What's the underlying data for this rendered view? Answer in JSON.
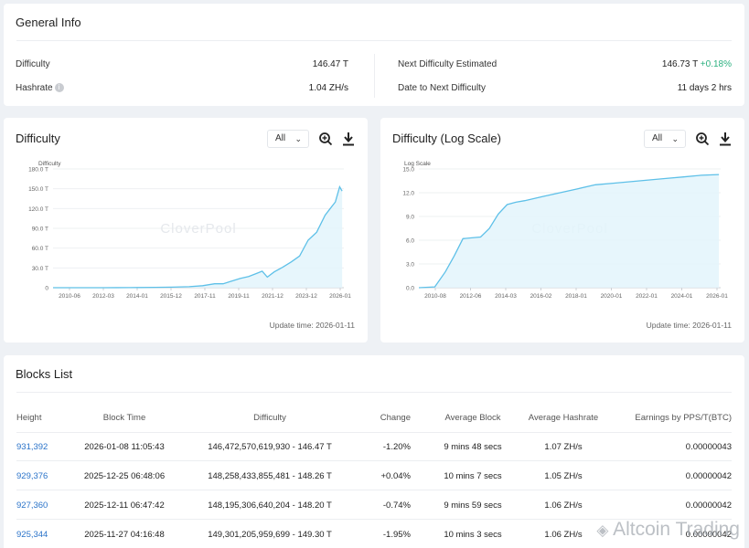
{
  "general_info": {
    "title": "General Info",
    "difficulty_label": "Difficulty",
    "difficulty_value": "146.47 T",
    "hashrate_label": "Hashrate",
    "hashrate_value": "1.04 ZH/s",
    "next_difficulty_label": "Next Difficulty Estimated",
    "next_difficulty_value": "146.73 T",
    "next_difficulty_change": "+0.18%",
    "date_to_next_label": "Date to Next Difficulty",
    "date_to_next_value": "11 days 2 hrs"
  },
  "difficulty_panel": {
    "title": "Difficulty",
    "range_select": "All",
    "update_time": "Update time: 2026-01-11",
    "watermark": "CloverPool"
  },
  "log_panel": {
    "title": "Difficulty (Log Scale)",
    "range_select": "All",
    "update_time": "Update time: 2026-01-11",
    "watermark": "CloverPool"
  },
  "chart_data": [
    {
      "type": "area",
      "ylabel": "Difficulty",
      "yticks": [
        "180.0 T",
        "150.0 T",
        "120.0 T",
        "90.0 T",
        "60.0 T",
        "30.0 T",
        "0"
      ],
      "xticks": [
        "2010-06",
        "2012-03",
        "2014-01",
        "2015-12",
        "2017-11",
        "2019-11",
        "2021-12",
        "2023-12",
        "2026-01"
      ],
      "ylim": [
        0,
        180
      ],
      "xlim": [
        2009.0,
        2026.1
      ],
      "x": [
        2009.0,
        2010.5,
        2012.0,
        2013.5,
        2014.0,
        2015.0,
        2016.0,
        2017.0,
        2017.8,
        2018.5,
        2019.0,
        2019.5,
        2020.0,
        2020.5,
        2021.0,
        2021.3,
        2021.6,
        2022.0,
        2022.5,
        2023.0,
        2023.5,
        2024.0,
        2024.5,
        2025.0,
        2025.3,
        2025.6,
        2025.85,
        2026.0
      ],
      "y": [
        0,
        0,
        0,
        0.1,
        0.3,
        0.5,
        0.8,
        1.5,
        3,
        6,
        6,
        10,
        14,
        17,
        22,
        25,
        16,
        24,
        31,
        39,
        48,
        72,
        84,
        110,
        120,
        130,
        153,
        146.47
      ],
      "grid": true
    },
    {
      "type": "area",
      "ylabel": "Log Scale",
      "yticks": [
        "15.0",
        "12.0",
        "9.0",
        "6.0",
        "3.0",
        "0.0"
      ],
      "xticks": [
        "2010-08",
        "2012-06",
        "2014-03",
        "2016-02",
        "2018-01",
        "2020-01",
        "2022-01",
        "2024-01",
        "2026-01"
      ],
      "ylim": [
        0,
        15
      ],
      "xlim": [
        2009.0,
        2026.1
      ],
      "x": [
        2009.0,
        2009.9,
        2010.5,
        2011.0,
        2011.5,
        2012.0,
        2012.5,
        2013.0,
        2013.5,
        2014.0,
        2014.5,
        2015.0,
        2016.0,
        2017.0,
        2018.0,
        2019.0,
        2020.0,
        2021.0,
        2022.0,
        2023.0,
        2024.0,
        2025.0,
        2026.0
      ],
      "y": [
        0,
        0.1,
        2.0,
        4.0,
        6.2,
        6.3,
        6.4,
        7.5,
        9.3,
        10.5,
        10.8,
        11.0,
        11.5,
        12.0,
        12.5,
        13.0,
        13.2,
        13.4,
        13.6,
        13.8,
        14.0,
        14.2,
        14.3
      ],
      "grid": true
    }
  ],
  "blocks_list": {
    "title": "Blocks List",
    "headers": [
      "Height",
      "Block Time",
      "Difficulty",
      "Change",
      "Average Block",
      "Average Hashrate",
      "Earnings by PPS/T(BTC)"
    ],
    "rows": [
      {
        "height": "931,392",
        "time": "2026-01-08 11:05:43",
        "difficulty": "146,472,570,619,930 - 146.47 T",
        "change": "-1.20%",
        "avg_block": "9 mins 48 secs",
        "avg_hashrate": "1.07 ZH/s",
        "earnings": "0.00000043"
      },
      {
        "height": "929,376",
        "time": "2025-12-25 06:48:06",
        "difficulty": "148,258,433,855,481 - 148.26 T",
        "change": "+0.04%",
        "avg_block": "10 mins 7 secs",
        "avg_hashrate": "1.05 ZH/s",
        "earnings": "0.00000042"
      },
      {
        "height": "927,360",
        "time": "2025-12-11 06:47:42",
        "difficulty": "148,195,306,640,204 - 148.20 T",
        "change": "-0.74%",
        "avg_block": "9 mins 59 secs",
        "avg_hashrate": "1.06 ZH/s",
        "earnings": "0.00000042"
      },
      {
        "height": "925,344",
        "time": "2025-11-27 04:16:48",
        "difficulty": "149,301,205,959,699 - 149.30 T",
        "change": "-1.95%",
        "avg_block": "10 mins 3 secs",
        "avg_hashrate": "1.06 ZH/s",
        "earnings": "0.00000042"
      }
    ]
  },
  "overlay_watermark": "Altcoin Trading",
  "colors": {
    "accent": "#2a73c9",
    "positive": "#2bb07f",
    "negative": "#e0493f",
    "line": "#5ec0e8",
    "fill": "#e3f4fc"
  }
}
